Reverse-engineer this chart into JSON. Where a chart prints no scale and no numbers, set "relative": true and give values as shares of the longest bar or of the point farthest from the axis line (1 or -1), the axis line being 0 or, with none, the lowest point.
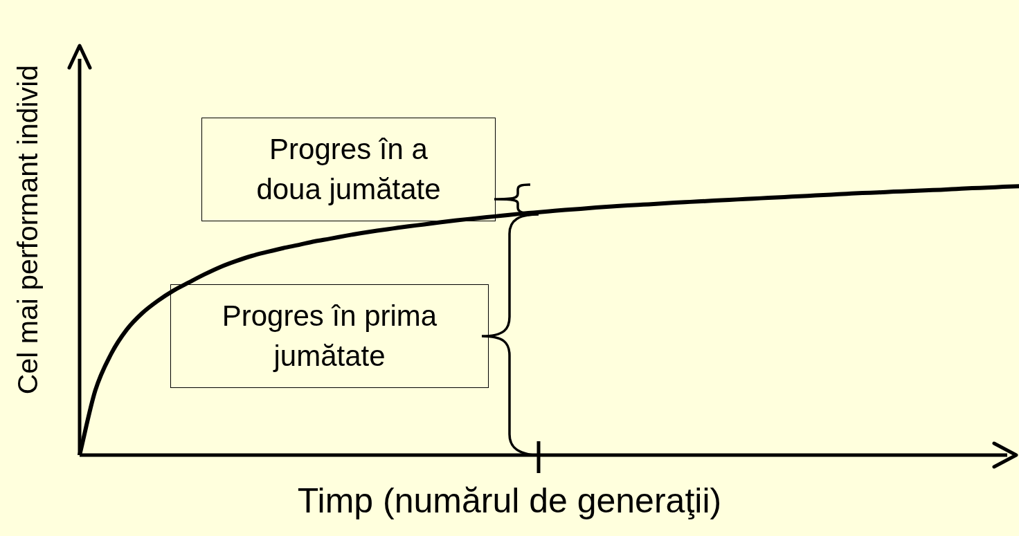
{
  "chart_data": {
    "type": "line",
    "relative": true,
    "xlabel": "Timp (numărul de generaţii)",
    "ylabel": "Cel mai performant individ",
    "marker": "none",
    "categories": [
      null,
      null,
      null,
      null,
      null,
      null,
      null,
      null,
      null,
      null,
      null,
      null,
      null,
      null,
      null,
      null,
      null,
      null,
      null,
      null,
      null,
      null,
      null,
      null,
      null,
      null,
      null,
      null,
      null,
      null,
      null,
      null,
      null,
      null,
      null,
      null,
      null,
      null,
      null,
      null,
      null,
      null,
      null,
      null,
      null,
      null,
      null,
      null,
      null,
      null,
      null,
      null,
      null,
      null,
      null,
      null,
      null,
      null,
      null,
      null,
      null
    ],
    "series": [
      {
        "color": "#000000",
        "values": [
          0,
          0.24,
          0.375,
          0.466,
          0.528,
          0.574,
          0.612,
          0.643,
          0.673,
          0.7,
          0.722,
          0.741,
          0.756,
          0.77,
          0.782,
          0.795,
          0.805,
          0.816,
          0.826,
          0.835,
          0.843,
          0.851,
          0.858,
          0.866,
          0.873,
          0.879,
          0.885,
          0.891,
          0.897,
          0.902,
          0.907,
          0.912,
          0.916,
          0.921,
          0.925,
          0.929,
          0.932,
          0.935,
          0.939,
          0.942,
          0.945,
          0.948,
          0.951,
          0.954,
          0.957,
          0.96,
          0.963,
          0.966,
          0.969,
          0.972,
          0.975,
          0.977,
          0.98,
          0.982,
          0.985,
          0.987,
          0.99,
          0.993,
          0.995,
          0.998,
          1
        ]
      }
    ],
    "annotations": [
      "Progres în a doua jumătate",
      "Progres în prima jumătate"
    ]
  }
}
